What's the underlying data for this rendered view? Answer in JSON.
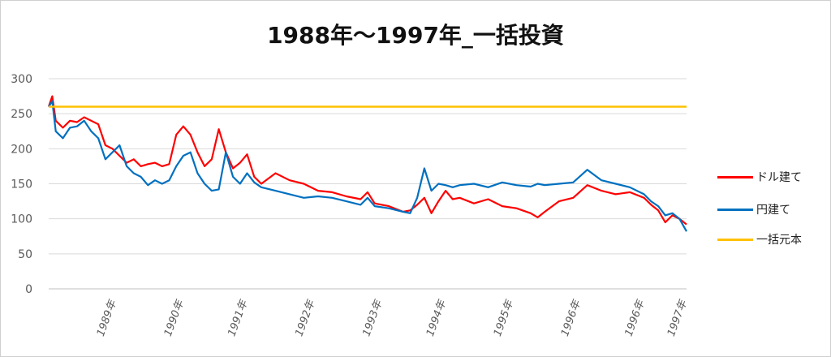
{
  "chart_data": {
    "type": "line",
    "title": "1988年～1997年_一括投資",
    "xlabel": "",
    "ylabel": "",
    "ylim": [
      0,
      300
    ],
    "yticks": [
      0,
      50,
      100,
      150,
      200,
      250,
      300
    ],
    "xlim": [
      1988.0,
      1997.0
    ],
    "x_tick_labels": [
      {
        "label": "1989年",
        "x": 1988.95
      },
      {
        "label": "1990年",
        "x": 1989.9
      },
      {
        "label": "1991年",
        "x": 1990.8
      },
      {
        "label": "1992年",
        "x": 1991.75
      },
      {
        "label": "1993年",
        "x": 1992.7
      },
      {
        "label": "1994年",
        "x": 1993.6
      },
      {
        "label": "1995年",
        "x": 1994.55
      },
      {
        "label": "1996年",
        "x": 1995.5
      },
      {
        "label": "1996年",
        "x": 1996.4
      },
      {
        "label": "1997年",
        "x": 1997.0
      }
    ],
    "grid": true,
    "legend_position": "right",
    "series": [
      {
        "name": "ドル建て",
        "color": "#ff0000",
        "x": [
          1988.0,
          1988.05,
          1988.1,
          1988.2,
          1988.3,
          1988.4,
          1988.5,
          1988.6,
          1988.7,
          1988.8,
          1988.9,
          1989.0,
          1989.1,
          1989.2,
          1989.3,
          1989.4,
          1989.5,
          1989.6,
          1989.7,
          1989.8,
          1989.9,
          1990.0,
          1990.1,
          1990.2,
          1990.3,
          1990.4,
          1990.5,
          1990.6,
          1990.7,
          1990.8,
          1990.9,
          1991.0,
          1991.2,
          1991.4,
          1991.6,
          1991.8,
          1992.0,
          1992.2,
          1992.4,
          1992.5,
          1992.6,
          1992.8,
          1993.0,
          1993.1,
          1993.2,
          1993.3,
          1993.4,
          1993.5,
          1993.6,
          1993.7,
          1993.8,
          1994.0,
          1994.2,
          1994.4,
          1994.6,
          1994.8,
          1994.9,
          1995.0,
          1995.2,
          1995.4,
          1995.6,
          1995.8,
          1996.0,
          1996.2,
          1996.4,
          1996.5,
          1996.6,
          1996.7,
          1996.8,
          1996.9,
          1997.0
        ],
        "values": [
          260,
          275,
          240,
          230,
          240,
          238,
          245,
          240,
          235,
          205,
          200,
          190,
          180,
          185,
          175,
          178,
          180,
          175,
          178,
          220,
          232,
          220,
          195,
          175,
          185,
          228,
          195,
          172,
          180,
          192,
          160,
          150,
          165,
          155,
          150,
          140,
          138,
          132,
          128,
          138,
          122,
          118,
          110,
          112,
          120,
          130,
          108,
          125,
          140,
          128,
          130,
          122,
          128,
          118,
          115,
          108,
          102,
          110,
          125,
          130,
          148,
          140,
          135,
          138,
          130,
          120,
          112,
          95,
          105,
          100,
          92
        ]
      },
      {
        "name": "円建て",
        "color": "#0070c0",
        "x": [
          1988.0,
          1988.05,
          1988.1,
          1988.2,
          1988.3,
          1988.4,
          1988.5,
          1988.6,
          1988.7,
          1988.8,
          1988.9,
          1989.0,
          1989.1,
          1989.2,
          1989.3,
          1989.4,
          1989.5,
          1989.6,
          1989.7,
          1989.8,
          1989.9,
          1990.0,
          1990.1,
          1990.2,
          1990.3,
          1990.4,
          1990.5,
          1990.6,
          1990.7,
          1990.8,
          1990.9,
          1991.0,
          1991.2,
          1991.4,
          1991.6,
          1991.8,
          1992.0,
          1992.2,
          1992.4,
          1992.5,
          1992.6,
          1992.8,
          1993.0,
          1993.1,
          1993.2,
          1993.3,
          1993.4,
          1993.5,
          1993.6,
          1993.7,
          1993.8,
          1994.0,
          1994.2,
          1994.4,
          1994.6,
          1994.8,
          1994.9,
          1995.0,
          1995.2,
          1995.4,
          1995.6,
          1995.8,
          1996.0,
          1996.2,
          1996.4,
          1996.5,
          1996.6,
          1996.7,
          1996.8,
          1996.9,
          1997.0
        ],
        "values": [
          260,
          268,
          225,
          215,
          230,
          232,
          240,
          225,
          215,
          185,
          195,
          205,
          175,
          165,
          160,
          148,
          155,
          150,
          155,
          175,
          190,
          195,
          165,
          150,
          140,
          142,
          195,
          160,
          150,
          165,
          152,
          145,
          140,
          135,
          130,
          132,
          130,
          125,
          120,
          130,
          118,
          115,
          110,
          108,
          130,
          172,
          140,
          150,
          148,
          145,
          148,
          150,
          145,
          152,
          148,
          146,
          150,
          148,
          150,
          152,
          170,
          155,
          150,
          145,
          135,
          125,
          118,
          105,
          108,
          100,
          82
        ]
      },
      {
        "name": "一括元本",
        "color": "#ffc000",
        "x": [
          1988.0,
          1997.0
        ],
        "values": [
          260,
          260
        ]
      }
    ]
  }
}
